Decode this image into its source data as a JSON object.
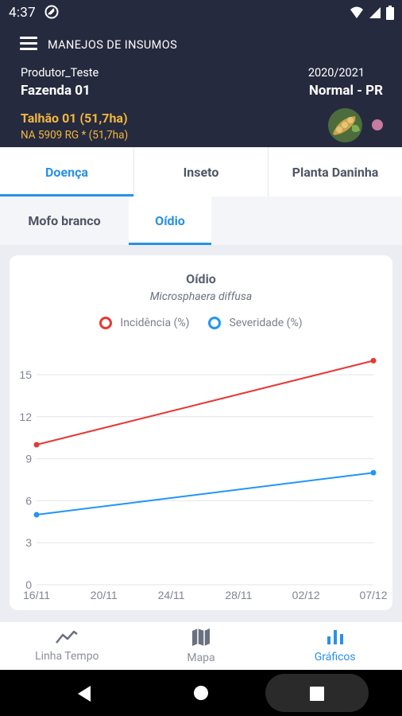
{
  "status_bar": {
    "time": "4:37"
  },
  "header": {
    "title": "MANEJOS DE INSUMOS",
    "producer": "Produtor_Teste",
    "farm": "Fazenda 01",
    "season": "2020/2021",
    "cycle": "Normal - PR",
    "field": "Talhão 01 (51,7ha)",
    "variety": "NA 5909 RG * (51,7ha)"
  },
  "category_tabs": [
    {
      "label": "Doença",
      "active": true
    },
    {
      "label": "Inseto",
      "active": false
    },
    {
      "label": "Planta Daninha",
      "active": false
    }
  ],
  "disease_tabs": [
    {
      "label": "Mofo branco",
      "active": false
    },
    {
      "label": "Oídio",
      "active": true
    }
  ],
  "colors": {
    "incidence": "#e53935",
    "severity": "#2196f3",
    "accent": "#2891e6",
    "header_bg": "#262a3e"
  },
  "chart_data": {
    "type": "line",
    "title": "Oídio",
    "subtitle": "Microsphaera diffusa",
    "x_ticks": [
      "16/11",
      "20/11",
      "24/11",
      "28/11",
      "02/12",
      "07/12"
    ],
    "y_ticks": [
      "0",
      "3",
      "6",
      "9",
      "12",
      "15"
    ],
    "ylim": [
      0,
      17
    ],
    "x": [
      "16/11",
      "07/12"
    ],
    "series": [
      {
        "name": "Incidência (%)",
        "values": [
          10,
          16
        ]
      },
      {
        "name": "Severidade (%)",
        "values": [
          5,
          8
        ]
      }
    ],
    "legend_position": "top"
  },
  "bottom_nav": [
    {
      "label": "Linha Tempo",
      "icon": "timeline-icon",
      "active": false
    },
    {
      "label": "Mapa",
      "icon": "map-icon",
      "active": false
    },
    {
      "label": "Gráficos",
      "icon": "bar-chart-icon",
      "active": true
    }
  ]
}
